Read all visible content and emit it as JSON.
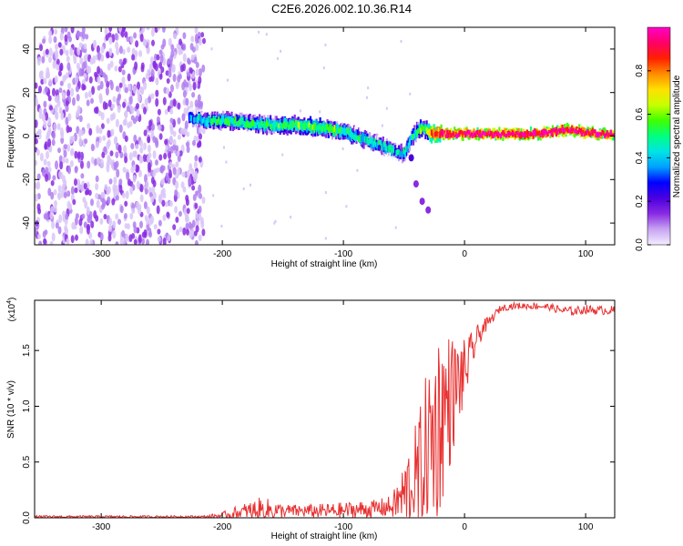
{
  "title": "C2E6.2026.002.10.36.R14",
  "chart_data": [
    {
      "type": "heatmap",
      "name": "spectrogram",
      "xlabel": "Height of straight line (km)",
      "ylabel": "Frequency (Hz)",
      "xlim": [
        -355,
        124
      ],
      "ylim": [
        -50,
        50
      ],
      "xticks": [
        -300,
        -200,
        -100,
        0,
        100
      ],
      "yticks": [
        -40,
        -20,
        0,
        20,
        40
      ],
      "colorbar": {
        "label": "Normalized spectral amplitude",
        "range": [
          0,
          1
        ],
        "ticks": [
          "0.0",
          "0.2",
          "0.4",
          "0.6",
          "0.8"
        ],
        "colors": [
          "#f4eeff",
          "#c7a4f2",
          "#8a2be2",
          "#4b00e0",
          "#0000ff",
          "#00a0ff",
          "#00e5e5",
          "#00ff80",
          "#40ff00",
          "#c8ff00",
          "#ffe000",
          "#ff8c00",
          "#ff2000",
          "#ff0066",
          "#ff00c8"
        ]
      },
      "noise_region_x": [
        -355,
        -215
      ],
      "ridge": {
        "x": [
          -228,
          -215,
          -200,
          -180,
          -160,
          -140,
          -120,
          -100,
          -85,
          -70,
          -58,
          -50,
          -44,
          -38,
          -32,
          -28,
          -20,
          0,
          20,
          40,
          60,
          75,
          85,
          95,
          110,
          124
        ],
        "freq": [
          9,
          7,
          7,
          6,
          5,
          5,
          4,
          2,
          -1,
          -4,
          -7,
          -8,
          0,
          3,
          3,
          1,
          1,
          1,
          1,
          1,
          1,
          2,
          3,
          2,
          1,
          1
        ],
        "amplitude": [
          0.35,
          0.45,
          0.5,
          0.5,
          0.5,
          0.55,
          0.55,
          0.5,
          0.45,
          0.45,
          0.4,
          0.4,
          0.45,
          0.55,
          0.6,
          0.8,
          0.9,
          0.95,
          0.95,
          0.95,
          0.95,
          0.95,
          0.95,
          0.95,
          0.95,
          0.95
        ]
      },
      "tail": {
        "x": [
          -44,
          -40,
          -35,
          -30
        ],
        "freq": [
          -10,
          -22,
          -30,
          -34
        ]
      }
    },
    {
      "type": "line",
      "name": "snr",
      "xlabel": "Height of straight line (km)",
      "ylabel": "SNR (10 * v/v)",
      "scale_label": "(x10",
      "scale_exp": "4",
      "scale_close": ")",
      "xlim": [
        -355,
        124
      ],
      "ylim": [
        0,
        1.95
      ],
      "xticks": [
        -300,
        -200,
        -100,
        0,
        100
      ],
      "yticks": [
        "0.0",
        "0.5",
        "1.0",
        "1.5"
      ],
      "ytick_values": [
        0.0,
        0.5,
        1.0,
        1.5
      ],
      "color": "#e83030",
      "envelope": {
        "x": [
          -355,
          -250,
          -215,
          -200,
          -185,
          -170,
          -160,
          -150,
          -130,
          -110,
          -90,
          -75,
          -60,
          -50,
          -45,
          -40,
          -35,
          -30,
          -25,
          -20,
          -15,
          -10,
          -5,
          0,
          5,
          10,
          15,
          20,
          25,
          30,
          40,
          50,
          60,
          70,
          80,
          90,
          100,
          110,
          124
        ],
        "base": [
          0.01,
          0.01,
          0.01,
          0.02,
          0.04,
          0.06,
          0.07,
          0.06,
          0.06,
          0.06,
          0.07,
          0.08,
          0.1,
          0.2,
          0.28,
          0.3,
          0.45,
          0.6,
          0.75,
          0.9,
          1.0,
          1.1,
          1.2,
          1.3,
          1.45,
          1.6,
          1.7,
          1.75,
          1.82,
          1.88,
          1.9,
          1.9,
          1.9,
          1.89,
          1.86,
          1.85,
          1.87,
          1.86,
          1.86
        ],
        "spread": [
          0.01,
          0.01,
          0.01,
          0.03,
          0.08,
          0.12,
          0.1,
          0.06,
          0.06,
          0.07,
          0.08,
          0.08,
          0.1,
          0.3,
          0.45,
          0.55,
          0.65,
          0.8,
          0.9,
          0.85,
          0.7,
          0.55,
          0.4,
          0.3,
          0.2,
          0.12,
          0.08,
          0.05,
          0.04,
          0.03,
          0.03,
          0.03,
          0.03,
          0.03,
          0.04,
          0.04,
          0.04,
          0.04,
          0.04
        ]
      }
    }
  ]
}
